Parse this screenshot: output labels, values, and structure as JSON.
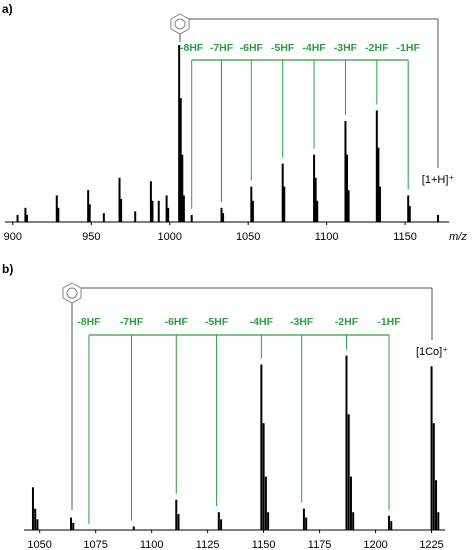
{
  "chart_data": [
    {
      "type": "bar",
      "label": "a)",
      "x_label": "m/z",
      "ion_label": "[1+H]⁺",
      "color": "#000000",
      "annotation_color": "#2e9e45",
      "xlim": [
        895,
        1178
      ],
      "xticks": [
        900,
        950,
        1000,
        1050,
        1100,
        1150
      ],
      "ylim": [
        0,
        100
      ],
      "x": [
        903,
        908,
        909,
        928,
        929,
        948,
        949,
        958,
        968,
        969,
        978,
        988,
        989,
        993,
        998,
        999,
        1006,
        1007,
        1008,
        1009,
        1014,
        1033,
        1034,
        1052,
        1053,
        1072,
        1073,
        1092,
        1093,
        1094,
        1112,
        1113,
        1114,
        1132,
        1133,
        1134,
        1152,
        1153,
        1171
      ],
      "values": [
        4,
        8,
        4,
        15,
        8,
        18,
        10,
        5,
        25,
        13,
        6,
        23,
        12,
        12,
        15,
        8,
        100,
        70,
        38,
        15,
        4,
        8,
        5,
        20,
        12,
        33,
        20,
        38,
        25,
        12,
        57,
        38,
        18,
        63,
        42,
        20,
        15,
        9,
        4
      ],
      "annotations": [
        {
          "text": "-8HF",
          "x": 1014
        },
        {
          "text": "-7HF",
          "x": 1033
        },
        {
          "text": "-6HF",
          "x": 1052
        },
        {
          "text": "-5HF",
          "x": 1072
        },
        {
          "text": "-4HF",
          "x": 1092
        },
        {
          "text": "-3HF",
          "x": 1112
        },
        {
          "text": "-2HF",
          "x": 1132
        },
        {
          "text": "-1HF",
          "x": 1152
        }
      ]
    },
    {
      "type": "bar",
      "label": "b)",
      "ion_label": "[1Co]⁺",
      "color": "#000000",
      "annotation_color": "#2e9e45",
      "xlim": [
        1043,
        1231
      ],
      "xticks": [
        1050,
        1075,
        1100,
        1125,
        1150,
        1175,
        1200,
        1225
      ],
      "ylim": [
        0,
        100
      ],
      "x": [
        1047,
        1048,
        1049,
        1064,
        1065,
        1092,
        1111,
        1112,
        1130,
        1131,
        1149,
        1150,
        1151,
        1152,
        1168,
        1169,
        1187,
        1188,
        1189,
        1190,
        1206,
        1207,
        1225,
        1226,
        1227,
        1228
      ],
      "values": [
        24,
        12,
        6,
        7,
        4,
        2,
        17,
        9,
        10,
        6,
        93,
        60,
        30,
        10,
        12,
        7,
        98,
        65,
        30,
        10,
        8,
        5,
        92,
        60,
        28,
        10
      ],
      "annotations": [
        {
          "text": "-8HF",
          "x": 1072
        },
        {
          "text": "-7HF",
          "x": 1091
        },
        {
          "text": "-6HF",
          "x": 1111
        },
        {
          "text": "-5HF",
          "x": 1129
        },
        {
          "text": "-4HF",
          "x": 1149
        },
        {
          "text": "-3HF",
          "x": 1167
        },
        {
          "text": "-2HF",
          "x": 1187
        },
        {
          "text": "-1HF",
          "x": 1206
        }
      ]
    }
  ]
}
